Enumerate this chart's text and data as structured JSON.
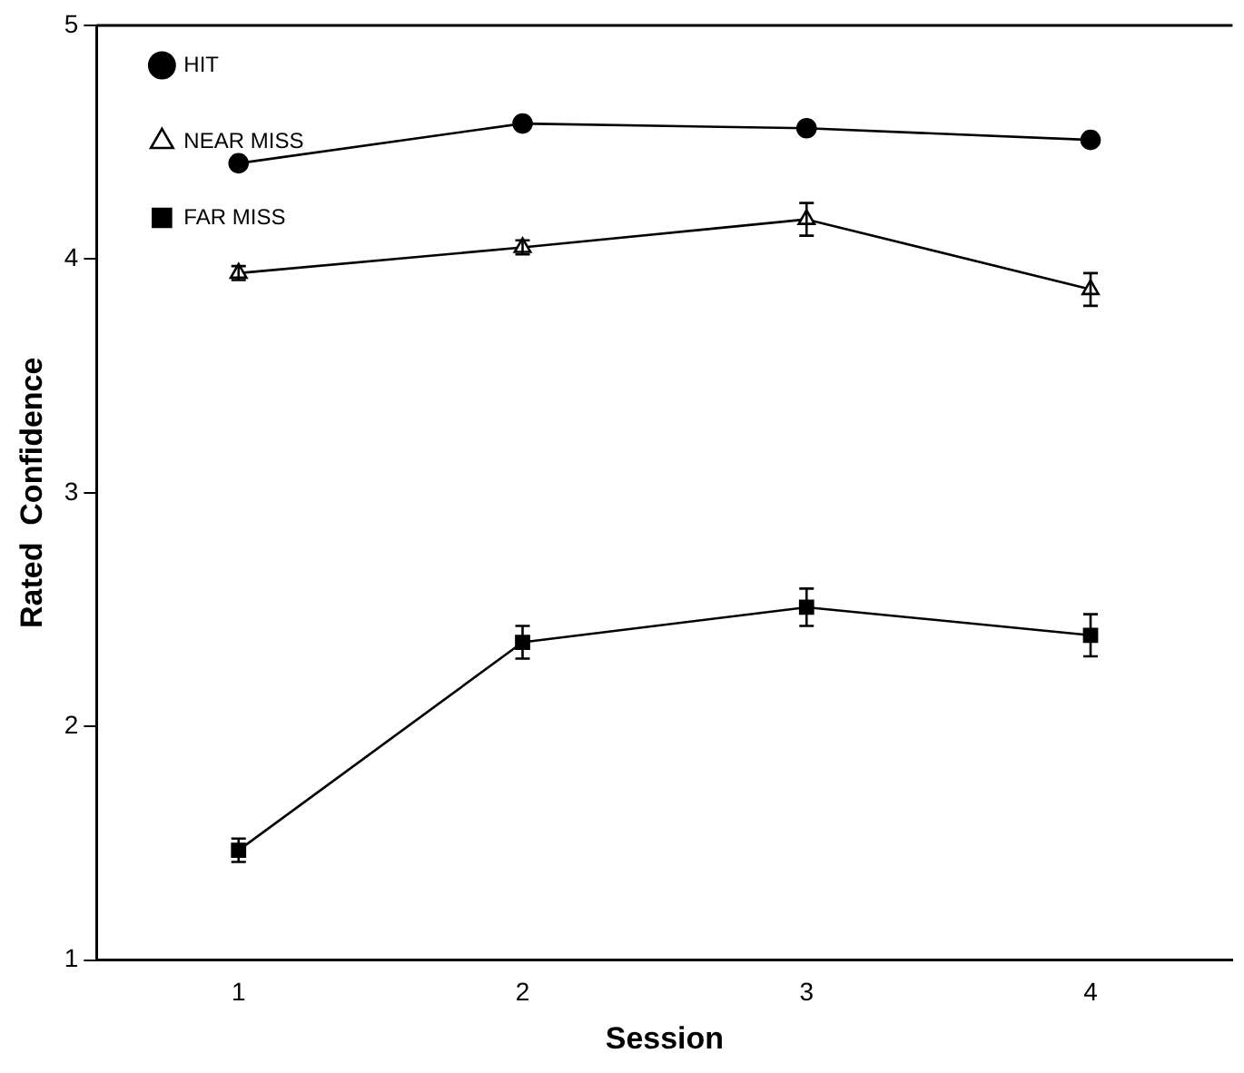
{
  "chart_data": {
    "type": "line",
    "xlabel": "Session",
    "ylabel": "Rated  Confidence",
    "x": [
      1,
      2,
      3,
      4
    ],
    "xlim": [
      0.5,
      4.5
    ],
    "xticks": [
      1,
      2,
      3,
      4
    ],
    "ylim": [
      1,
      5
    ],
    "yticks": [
      1,
      2,
      3,
      4,
      5
    ],
    "grid": false,
    "legend": "left",
    "line_style": "solid",
    "series": [
      {
        "name": "HIT",
        "color": "#000000",
        "marker": "circle",
        "values": [
          4.41,
          4.58,
          4.56,
          4.51
        ]
      },
      {
        "name": "NEAR MISS",
        "color": "#000000",
        "marker": "triangle",
        "values": [
          3.94,
          4.05,
          4.17,
          3.87
        ],
        "errors": [
          0.03,
          0.03,
          0.07,
          0.07
        ]
      },
      {
        "name": "FAR MISS",
        "color": "#000000",
        "marker": "square",
        "values": [
          1.47,
          2.36,
          2.51,
          2.39
        ],
        "errors": [
          0.05,
          0.07,
          0.08,
          0.09
        ]
      }
    ]
  }
}
